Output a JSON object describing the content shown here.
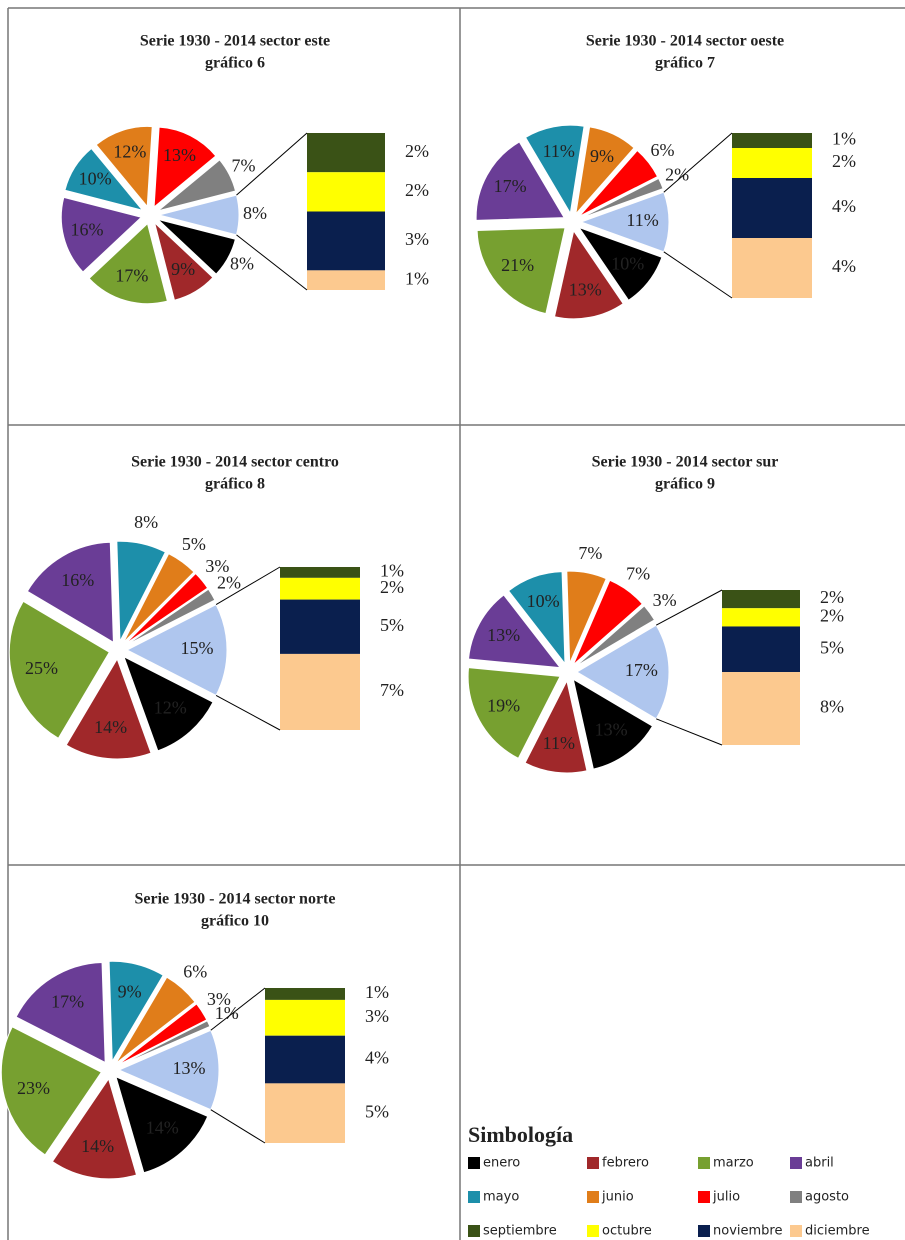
{
  "chart_data": [
    {
      "type": "pie-of-bar",
      "title": "Serie 1930 - 2014 sector este",
      "subtitle": "gráfico 6",
      "values": [
        8,
        9,
        17,
        16,
        10,
        12,
        13,
        7,
        8
      ],
      "value_labels": [
        "8%",
        "9%",
        "17%",
        "16%",
        "10%",
        "12%",
        "13%",
        "7%",
        "8%"
      ],
      "bar_values": [
        2,
        2,
        3,
        1
      ],
      "bar_value_labels": [
        "2%",
        "2%",
        "3%",
        "1%"
      ],
      "other_color": "#afc6ee"
    },
    {
      "type": "pie-of-bar",
      "title": "Serie 1930 - 2014 sector oeste",
      "subtitle": "gráfico 7",
      "values": [
        10,
        13,
        21,
        17,
        11,
        9,
        6,
        2,
        11
      ],
      "value_labels": [
        "10%",
        "13%",
        "21%",
        "17%",
        "11%",
        "9%",
        "6%",
        "2%",
        "11%"
      ],
      "bar_values": [
        1,
        2,
        4,
        4
      ],
      "bar_value_labels": [
        "1%",
        "2%",
        "4%",
        "4%"
      ],
      "other_color": "#afc6ee"
    },
    {
      "type": "pie-of-bar",
      "title": "Serie 1930 - 2014 sector centro",
      "subtitle": "gráfico 8",
      "values": [
        12,
        14,
        25,
        16,
        8,
        5,
        3,
        2,
        15
      ],
      "value_labels": [
        "12%",
        "14%",
        "25%",
        "16%",
        "8%",
        "5%",
        "3%",
        "2%",
        "15%"
      ],
      "bar_values": [
        1,
        2,
        5,
        7
      ],
      "bar_value_labels": [
        "1%",
        "2%",
        "5%",
        "7%"
      ],
      "other_color": "#afc6ee"
    },
    {
      "type": "pie-of-bar",
      "title": "Serie 1930 - 2014 sector sur",
      "subtitle": "gráfico 9",
      "values": [
        13,
        11,
        19,
        13,
        10,
        7,
        7,
        3,
        17
      ],
      "value_labels": [
        "13%",
        "11%",
        "19%",
        "13%",
        "10%",
        "7%",
        "7%",
        "3%",
        "17%"
      ],
      "bar_values": [
        2,
        2,
        5,
        8
      ],
      "bar_value_labels": [
        "2%",
        "2%",
        "5%",
        "8%"
      ],
      "other_color": "#afc6ee"
    },
    {
      "type": "pie-of-bar",
      "title": "Serie 1930 - 2014 sector norte",
      "subtitle": "gráfico 10",
      "values": [
        14,
        14,
        23,
        17,
        9,
        6,
        3,
        1,
        13
      ],
      "value_labels": [
        "14%",
        "14%",
        "23%",
        "17%",
        "9%",
        "6%",
        "3%",
        "1%",
        "13%"
      ],
      "bar_values": [
        1,
        3,
        4,
        5
      ],
      "bar_value_labels": [
        "1%",
        "3%",
        "4%",
        "5%"
      ],
      "other_color": "#afc6ee"
    }
  ],
  "legend": {
    "title": "Simbología",
    "items": [
      {
        "name": "enero",
        "color": "#000000"
      },
      {
        "name": "febrero",
        "color": "#a0282a"
      },
      {
        "name": "marzo",
        "color": "#77a030"
      },
      {
        "name": "abril",
        "color": "#6a3d96"
      },
      {
        "name": "mayo",
        "color": "#1d8faa"
      },
      {
        "name": "junio",
        "color": "#e07d1a"
      },
      {
        "name": "julio",
        "color": "#ff0000"
      },
      {
        "name": "agosto",
        "color": "#808080"
      },
      {
        "name": "septiembre",
        "color": "#3a5216"
      },
      {
        "name": "octubre",
        "color": "#ffff00"
      },
      {
        "name": "noviembre",
        "color": "#0a1f4e"
      },
      {
        "name": "diciembre",
        "color": "#fcc98f"
      }
    ]
  }
}
